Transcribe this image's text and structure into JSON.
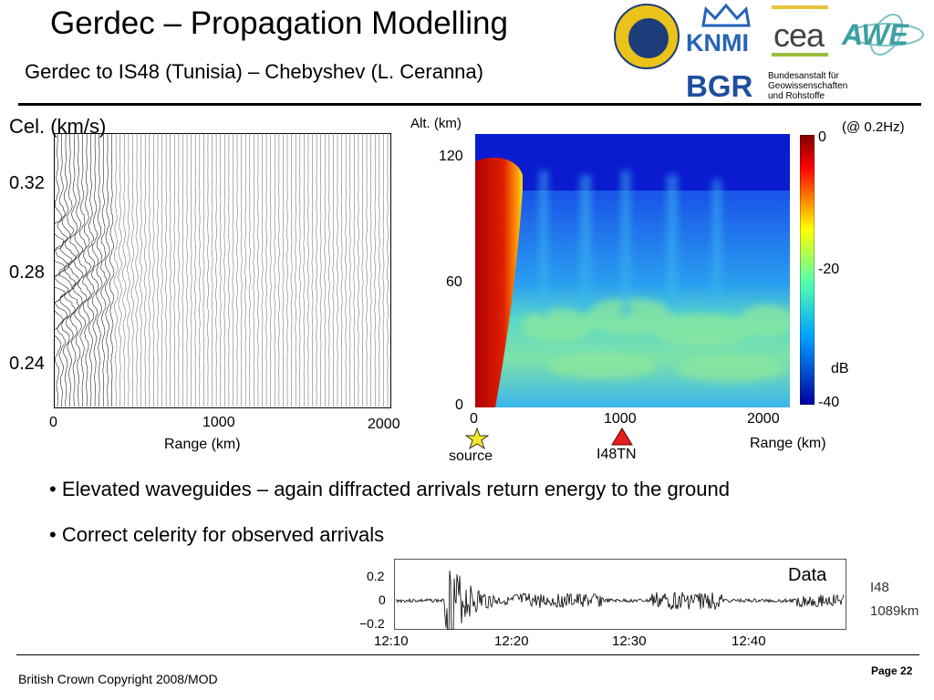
{
  "header": {
    "title": "Gerdec – Propagation Modelling",
    "subtitle": "Gerdec to IS48 (Tunisia) – Chebyshev (L. Ceranna)"
  },
  "logos": {
    "knmi": "KNMI",
    "cea": "cea",
    "awe": "AWE",
    "bgr": "BGR",
    "bgr_lines": [
      "Bundesanstalt für",
      "Geowissenschaften",
      "und Rohstoffe"
    ]
  },
  "left_plot": {
    "ylabel": "Cel. (km/s)",
    "yticks": [
      "0.32",
      "0.28",
      "0.24"
    ],
    "xticks": [
      "0",
      "1000",
      "2000"
    ],
    "xlabel": "Range (km)"
  },
  "right_plot": {
    "ylabel": "Alt. (km)",
    "yticks": [
      "120",
      "60",
      "0"
    ],
    "xticks": [
      "0",
      "1000",
      "2000"
    ],
    "xlabel": "Range (km)",
    "frequency": "(@ 0.2Hz)",
    "colorbar_ticks": [
      "0",
      "-20",
      "-40"
    ],
    "colorbar_unit": "dB",
    "source_label": "source",
    "station_label": "I48TN",
    "colors": {
      "source_star": "#f5e62a",
      "station_triangle": "#e02020"
    }
  },
  "bullets": [
    "• Elevated waveguides – again diffracted arrivals return energy to the ground",
    "• Correct celerity for observed arrivals"
  ],
  "waveform": {
    "label": "Data",
    "yticks": [
      "0.2",
      "0",
      "−0.2"
    ],
    "xticks": [
      "12:10",
      "12:20",
      "12:30",
      "12:40"
    ],
    "station": "I48",
    "distance": "1089km"
  },
  "footer": {
    "copyright": "British Crown Copyright 2008/MOD",
    "page": "Page 22"
  }
}
